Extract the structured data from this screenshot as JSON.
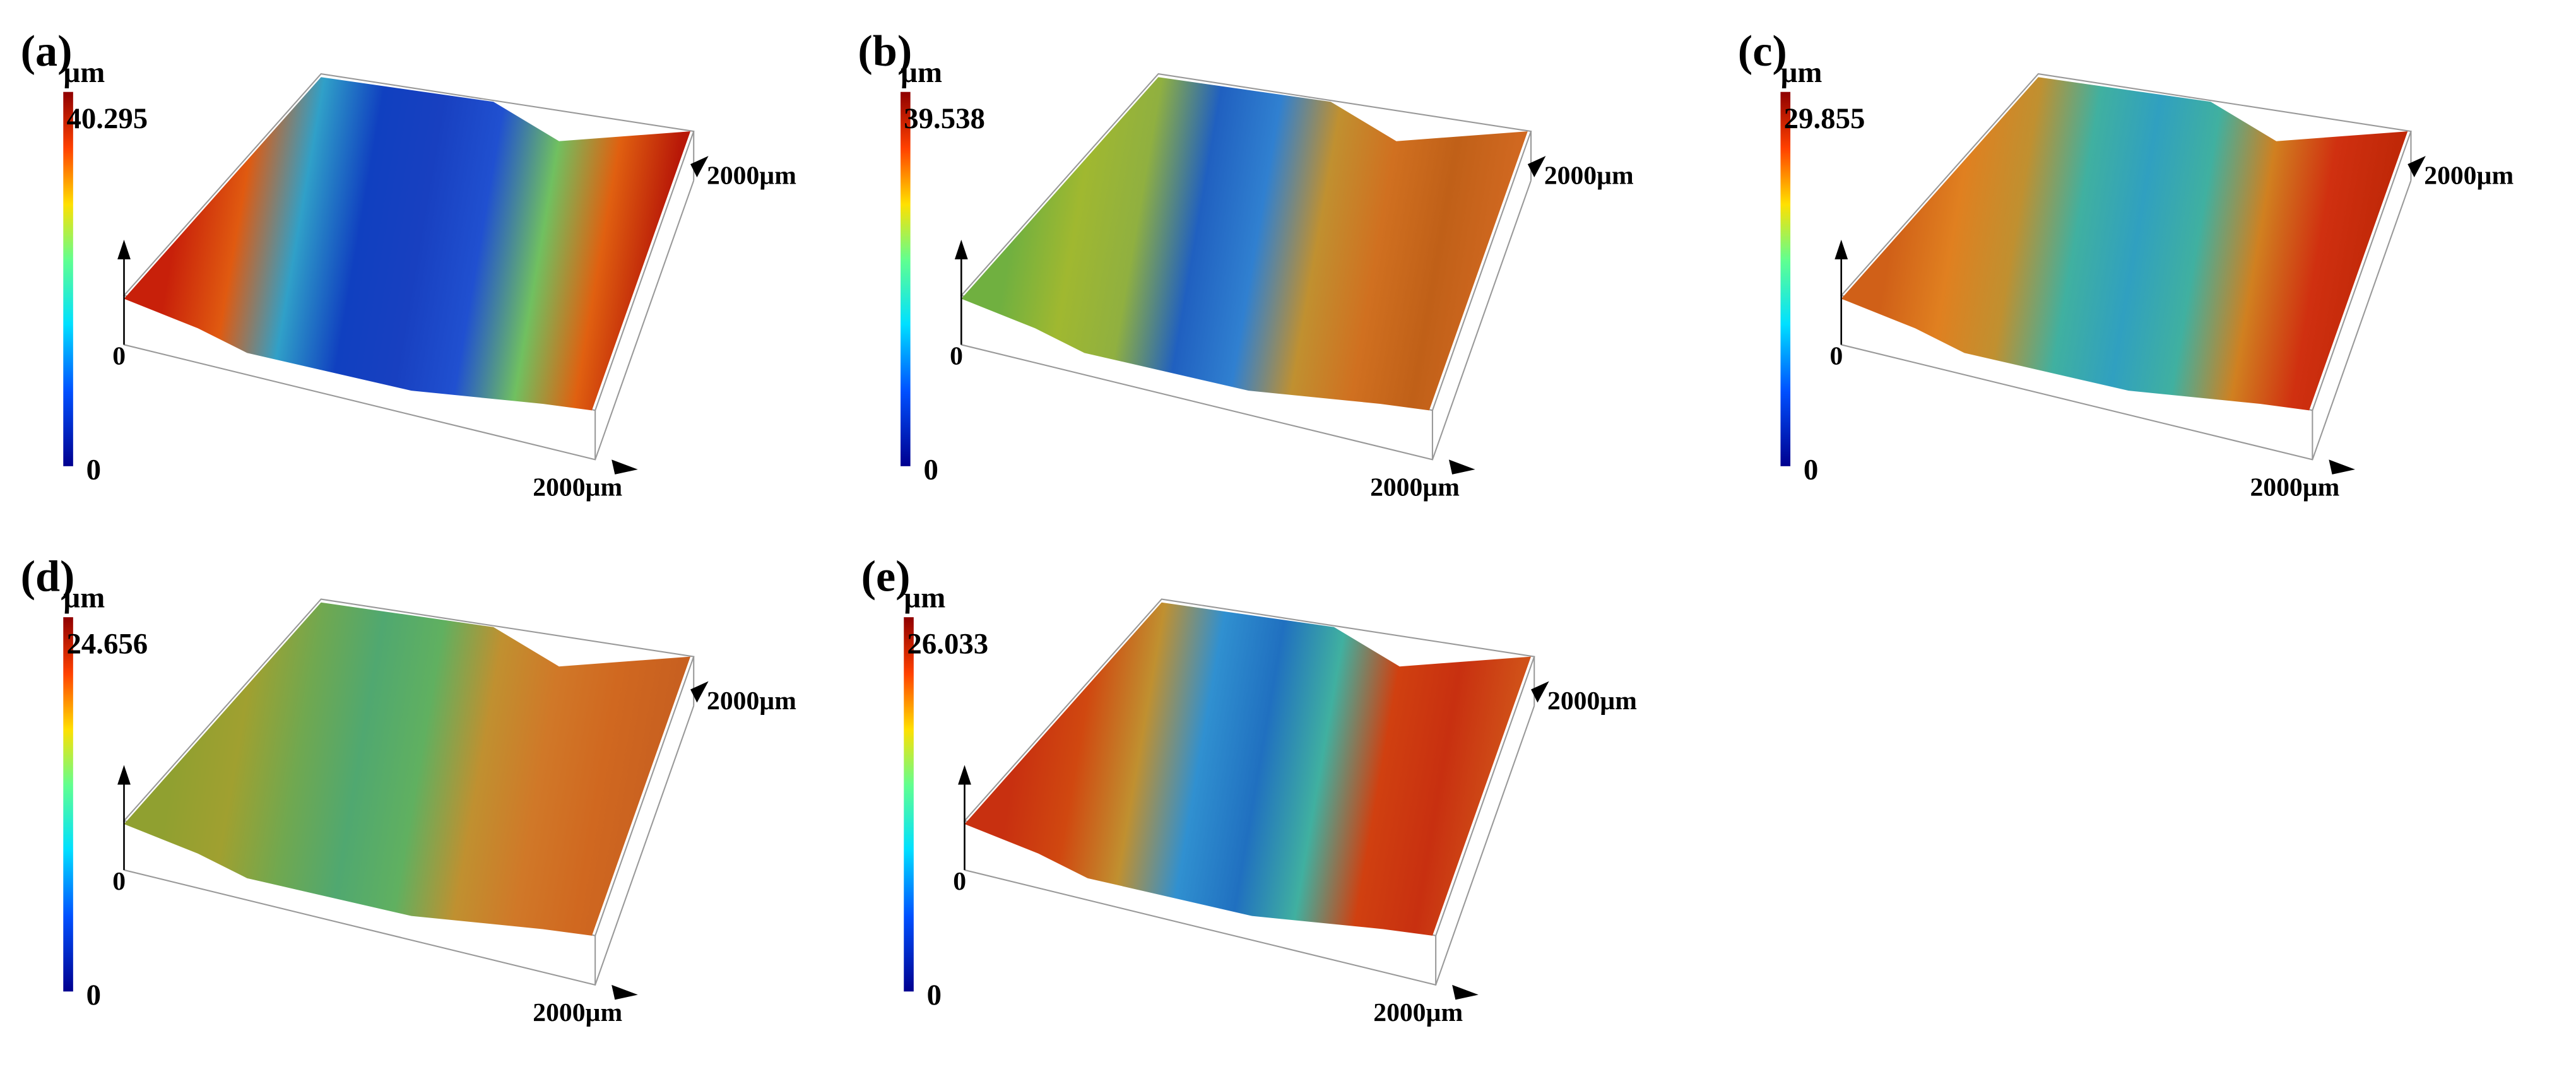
{
  "panels": [
    {
      "label": "(a)",
      "unit": "µm",
      "max_label": "40.295",
      "min_label": "0",
      "z_label": "0",
      "y_axis_label": "2000µm",
      "x_axis_label": "2000µm"
    },
    {
      "label": "(b)",
      "unit": "µm",
      "max_label": "39.538",
      "min_label": "0",
      "z_label": "0",
      "y_axis_label": "2000µm",
      "x_axis_label": "2000µm"
    },
    {
      "label": "(c)",
      "unit": "µm",
      "max_label": "29.855",
      "min_label": "0",
      "z_label": "0",
      "y_axis_label": "2000µm",
      "x_axis_label": "2000µm"
    },
    {
      "label": "(d)",
      "unit": "µm",
      "max_label": "24.656",
      "min_label": "0",
      "z_label": "0",
      "y_axis_label": "2000µm",
      "x_axis_label": "2000µm"
    },
    {
      "label": "(e)",
      "unit": "µm",
      "max_label": "26.033",
      "min_label": "0",
      "z_label": "0",
      "y_axis_label": "2000µm",
      "x_axis_label": "2000µm"
    }
  ]
}
